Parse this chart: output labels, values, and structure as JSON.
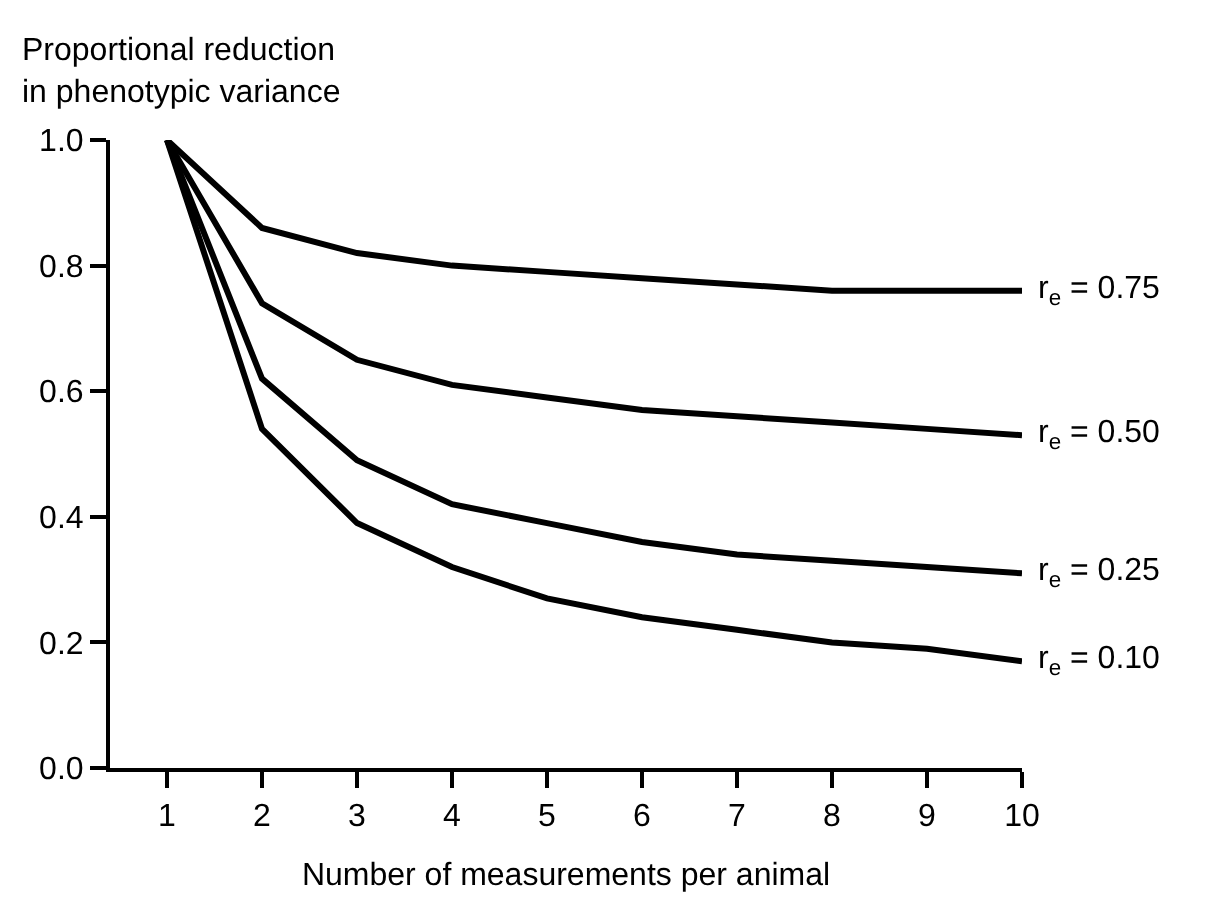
{
  "chart_data": {
    "type": "line",
    "ylabel": "Proportional reduction\nin phenotypic variance",
    "xlabel": "Number of measurements per animal",
    "x": [
      1,
      2,
      3,
      4,
      5,
      6,
      7,
      8,
      9,
      10
    ],
    "series": [
      {
        "name": "r$_{e}$ = 0.75",
        "color": "#000000",
        "values": [
          1.0,
          0.86,
          0.82,
          0.8,
          0.79,
          0.78,
          0.77,
          0.76,
          0.76,
          0.76
        ]
      },
      {
        "name": "r$_{e}$ = 0.50",
        "color": "#000000",
        "values": [
          1.0,
          0.74,
          0.65,
          0.61,
          0.59,
          0.57,
          0.56,
          0.55,
          0.54,
          0.53
        ]
      },
      {
        "name": "r$_{e}$ = 0.25",
        "color": "#000000",
        "values": [
          1.0,
          0.62,
          0.49,
          0.42,
          0.39,
          0.36,
          0.34,
          0.33,
          0.32,
          0.31
        ]
      },
      {
        "name": "r$_{e}$ = 0.10",
        "color": "#000000",
        "values": [
          1.0,
          0.54,
          0.39,
          0.32,
          0.27,
          0.24,
          0.22,
          0.2,
          0.19,
          0.17
        ]
      }
    ],
    "xlim": [
      0.4,
      10
    ],
    "xticks": [
      1,
      2,
      3,
      4,
      5,
      6,
      7,
      8,
      9,
      10
    ],
    "ylim": [
      0,
      1
    ],
    "yticks": [
      {
        "value": 0,
        "label": "0.0"
      },
      {
        "value": 0.2,
        "label": "0.2"
      },
      {
        "value": 0.4,
        "label": "0.4"
      },
      {
        "value": 0.6,
        "label": "0.6"
      },
      {
        "value": 0.8,
        "label": "0.8"
      },
      {
        "value": 1,
        "label": "1.0"
      }
    ],
    "legend": false,
    "marker": "none",
    "line_style": "solid"
  }
}
